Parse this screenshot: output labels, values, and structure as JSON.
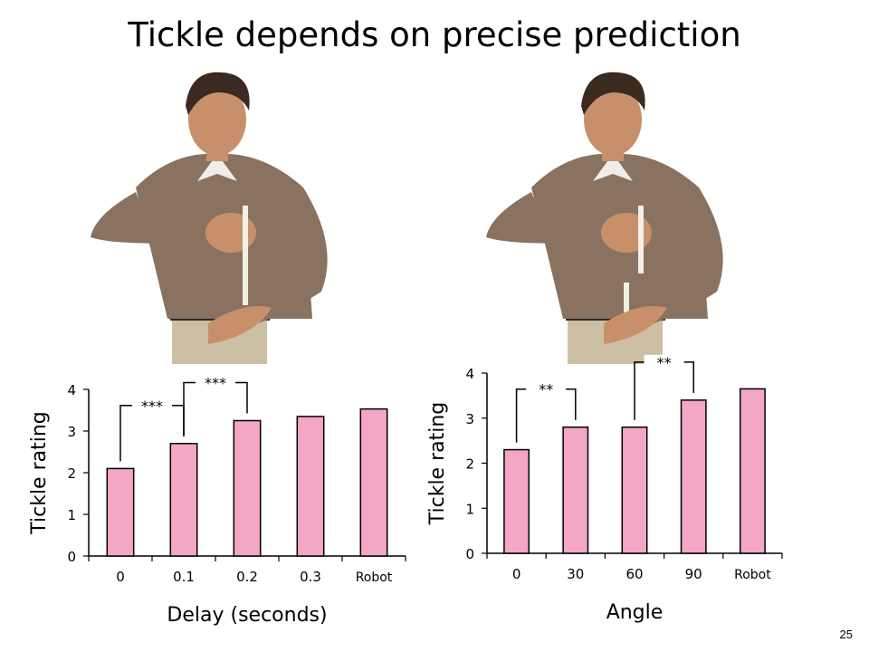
{
  "title": "Tickle depends on precise prediction",
  "page_number": "25",
  "colors": {
    "bar_fill": "#f4a6c6",
    "bar_stroke": "#000000",
    "shirt": "#8a7260",
    "skin": "#c8906a",
    "hair": "#3a2a20",
    "pants": "#cdbfa3"
  },
  "figures": [
    {
      "icon": "man-self-tickle-delay-icon"
    },
    {
      "icon": "man-self-tickle-angle-icon"
    }
  ],
  "chart_data": [
    {
      "type": "bar",
      "categories": [
        "0",
        "0.1",
        "0.2",
        "0.3",
        "Robot"
      ],
      "values": [
        2.1,
        2.7,
        3.25,
        3.35,
        3.53
      ],
      "xlabel": "Delay (seconds)",
      "ylabel": "Tickle rating",
      "ylim": [
        0,
        4
      ],
      "yticks": [
        "0",
        "1",
        "2",
        "3",
        "4"
      ],
      "grid": false,
      "significance": [
        {
          "from": 0,
          "to": 1,
          "label": "***"
        },
        {
          "from": 1,
          "to": 2,
          "label": "***"
        }
      ]
    },
    {
      "type": "bar",
      "categories": [
        "0",
        "30",
        "60",
        "90",
        "Robot"
      ],
      "values": [
        2.3,
        2.8,
        2.8,
        3.4,
        3.65
      ],
      "xlabel": "Angle",
      "ylabel": "Tickle rating",
      "ylim": [
        0,
        4
      ],
      "yticks": [
        "0",
        "1",
        "2",
        "3",
        "4"
      ],
      "grid": false,
      "significance": [
        {
          "from": 0,
          "to": 1,
          "label": "**"
        },
        {
          "from": 2,
          "to": 3,
          "label": "**"
        }
      ]
    }
  ]
}
